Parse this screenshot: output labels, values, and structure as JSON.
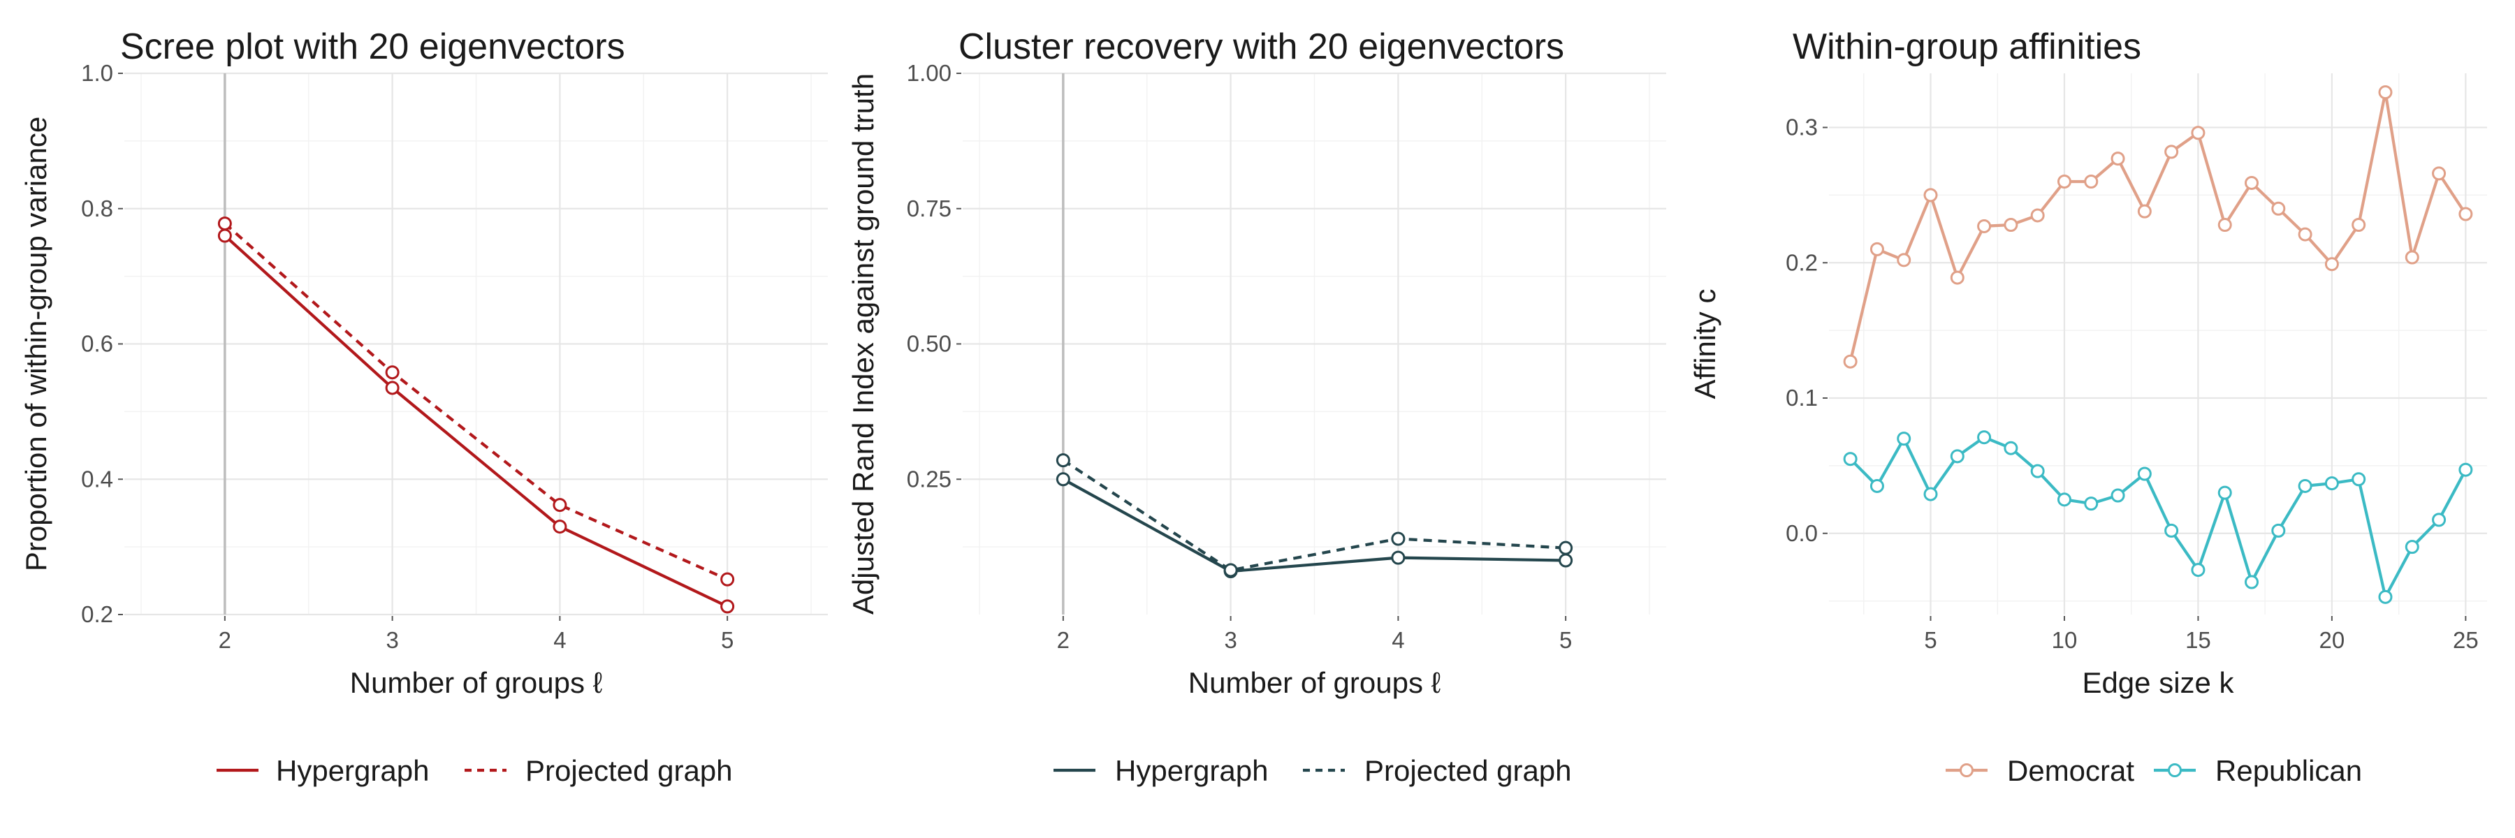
{
  "chart_data": [
    {
      "type": "line",
      "title": "Scree plot with 20 eigenvectors",
      "xlabel": "Number of groups ℓ",
      "ylabel": "Proportion of within-group variance",
      "x": [
        2,
        3,
        4,
        5
      ],
      "xlim": [
        1.4,
        5.6
      ],
      "ylim": [
        0.2,
        1.0
      ],
      "xticks": [
        "2",
        "3",
        "4",
        "5"
      ],
      "yticks": [
        "0.2",
        "0.4",
        "0.6",
        "0.8",
        "1.0"
      ],
      "vline_x": 2,
      "grid": true,
      "legend_position": "bottom",
      "series": [
        {
          "name": "Hypergraph",
          "values": [
            0.76,
            0.535,
            0.33,
            0.212
          ],
          "color": "#b2181b",
          "linestyle": "solid"
        },
        {
          "name": "Projected graph",
          "values": [
            0.778,
            0.558,
            0.362,
            0.252
          ],
          "color": "#b2181b",
          "linestyle": "dashed"
        }
      ]
    },
    {
      "type": "line",
      "title": "Cluster recovery with 20 eigenvectors",
      "xlabel": "Number of groups ℓ",
      "ylabel": "Adjusted Rand Index against ground truth",
      "x": [
        2,
        3,
        4,
        5
      ],
      "xlim": [
        1.4,
        5.6
      ],
      "ylim": [
        0.0,
        1.0
      ],
      "xticks": [
        "2",
        "3",
        "4",
        "5"
      ],
      "yticks": [
        "0.25",
        "0.50",
        "0.75",
        "1.00"
      ],
      "vline_x": 2,
      "grid": true,
      "legend_position": "bottom",
      "series": [
        {
          "name": "Hypergraph",
          "values": [
            0.25,
            0.08,
            0.105,
            0.1
          ],
          "color": "#24464d",
          "linestyle": "solid"
        },
        {
          "name": "Projected graph",
          "values": [
            0.285,
            0.082,
            0.14,
            0.123
          ],
          "color": "#24464d",
          "linestyle": "dashed"
        }
      ]
    },
    {
      "type": "line",
      "title": "Within-group affinities",
      "xlabel": "Edge size k",
      "ylabel": "Affinity c",
      "x": [
        2,
        3,
        4,
        5,
        6,
        7,
        8,
        9,
        10,
        11,
        12,
        13,
        14,
        15,
        16,
        17,
        18,
        19,
        20,
        21,
        22,
        23,
        24,
        25
      ],
      "xlim": [
        1.2,
        25.8
      ],
      "ylim": [
        -0.06,
        0.34
      ],
      "xticks": [
        "5",
        "10",
        "15",
        "20",
        "25"
      ],
      "yticks": [
        "0.0",
        "0.1",
        "0.2",
        "0.3"
      ],
      "grid": true,
      "legend_position": "bottom",
      "series": [
        {
          "name": "Democrat",
          "values": [
            0.127,
            0.21,
            0.202,
            0.25,
            0.189,
            0.227,
            0.228,
            0.235,
            0.26,
            0.26,
            0.277,
            0.238,
            0.282,
            0.296,
            0.228,
            0.259,
            0.24,
            0.221,
            0.199,
            0.228,
            0.326,
            0.204,
            0.266,
            0.236
          ],
          "color": "#e0a088",
          "linestyle": "solid"
        },
        {
          "name": "Republican",
          "values": [
            0.055,
            0.035,
            0.07,
            0.029,
            0.057,
            0.071,
            0.063,
            0.046,
            0.025,
            0.022,
            0.028,
            0.044,
            0.002,
            -0.027,
            0.03,
            -0.036,
            0.002,
            0.035,
            0.037,
            0.04,
            -0.047,
            -0.01,
            0.01,
            0.047
          ],
          "color": "#3bbac4",
          "linestyle": "solid"
        }
      ]
    }
  ]
}
